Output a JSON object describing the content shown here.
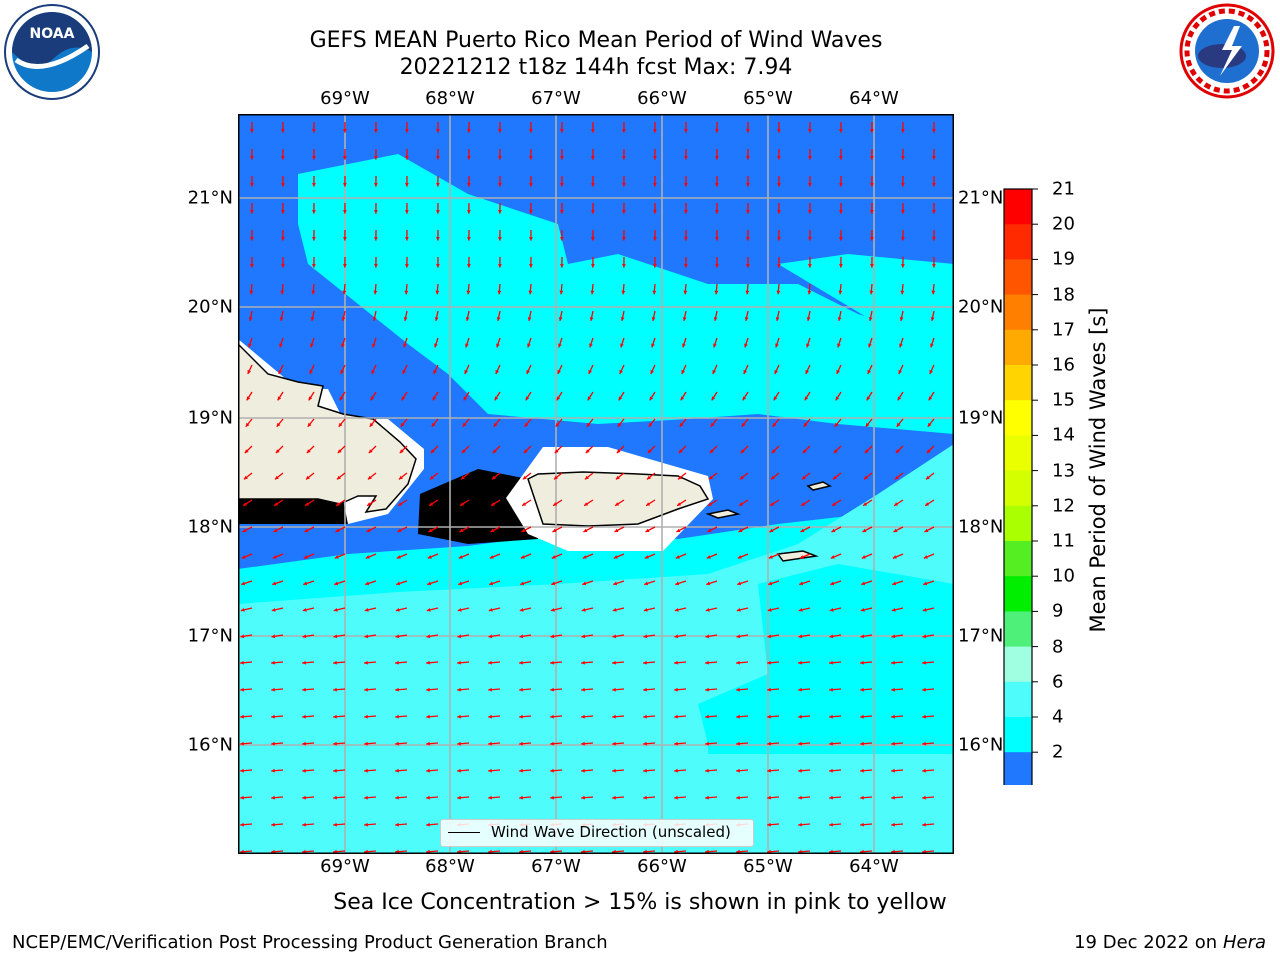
{
  "header": {
    "title_line1": "GEFS MEAN Puerto Rico Mean Period of Wind Waves",
    "title_line2": "20221212 t18z 144h fcst   Max: 7.94"
  },
  "map": {
    "lon_ticks": [
      "69°W",
      "68°W",
      "67°W",
      "66°W",
      "65°W",
      "64°W"
    ],
    "lat_ticks": [
      "21°N",
      "20°N",
      "19°N",
      "18°N",
      "17°N",
      "16°N"
    ],
    "legend_label": "Wind Wave Direction (unscaled)",
    "colors": {
      "land": "#efedde",
      "band_2_4": "#1f78ff",
      "band_4_6": "#00ffff",
      "band_6_8": "#4ffcfc",
      "band_lt_2": "#0000f0",
      "arrow": "#ff0000"
    },
    "icons": [
      "noaa-logo",
      "nws-logo"
    ]
  },
  "colorbar": {
    "title": "Mean Period of Wind Waves [s]",
    "labels": [
      "21",
      "20",
      "19",
      "18",
      "17",
      "16",
      "15",
      "14",
      "13",
      "12",
      "11",
      "10",
      "9",
      "8",
      "6",
      "4",
      "2"
    ],
    "colors": [
      "#ff0000",
      "#ff2a00",
      "#ff5500",
      "#ff8000",
      "#ffaa00",
      "#ffd400",
      "#ffff00",
      "#eaff00",
      "#d4ff00",
      "#aaff00",
      "#55ee22",
      "#00ee00",
      "#4ef07a",
      "#a0ffe0",
      "#4ffcfc",
      "#00ffff",
      "#1f78ff"
    ],
    "extend_color": "#0000f0"
  },
  "footer": {
    "note": "Sea Ice Concentration > 15% is shown in pink to yellow",
    "left": "NCEP/EMC/Verification Post Processing Product Generation Branch",
    "right_date": "19 Dec 2022 on",
    "right_host": "Hera"
  }
}
